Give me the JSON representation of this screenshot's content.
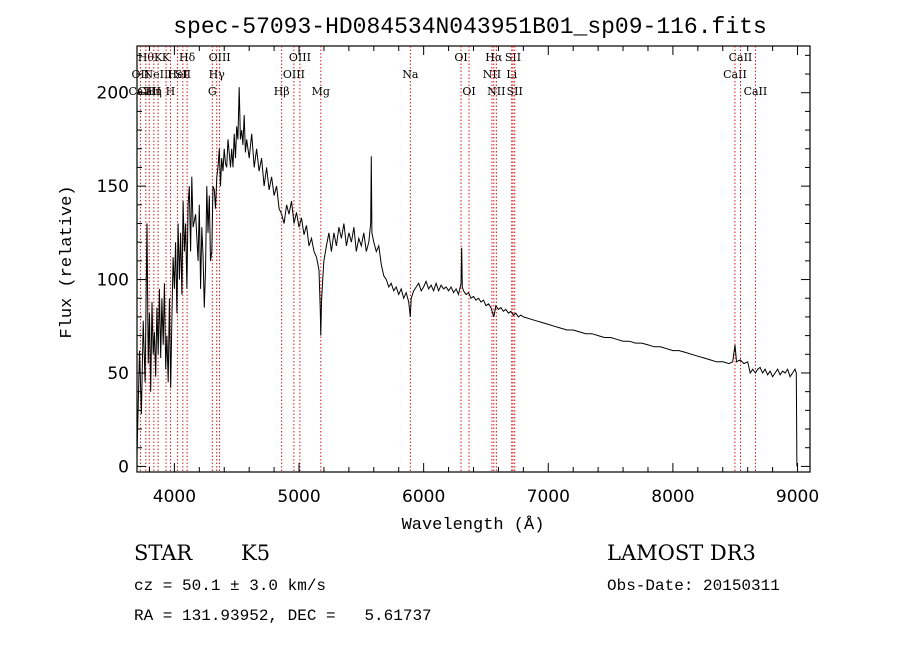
{
  "chart_data": {
    "type": "line",
    "title": "spec-57093-HD084534N043951B01_sp09-116.fits",
    "xlabel": "Wavelength (Å)",
    "ylabel": "Flux (relative)",
    "xlim": [
      3700,
      9100
    ],
    "ylim": [
      -3,
      225
    ],
    "x_ticks": [
      4000,
      5000,
      6000,
      7000,
      8000,
      9000
    ],
    "y_ticks": [
      0,
      50,
      100,
      150,
      200
    ],
    "grid": false,
    "series": [
      {
        "points": [
          [
            3700,
            5
          ],
          [
            3720,
            62
          ],
          [
            3735,
            28
          ],
          [
            3750,
            78
          ],
          [
            3765,
            45
          ],
          [
            3780,
            130
          ],
          [
            3790,
            55
          ],
          [
            3800,
            82
          ],
          [
            3810,
            40
          ],
          [
            3820,
            88
          ],
          [
            3830,
            60
          ],
          [
            3840,
            72
          ],
          [
            3850,
            48
          ],
          [
            3860,
            85
          ],
          [
            3870,
            60
          ],
          [
            3880,
            95
          ],
          [
            3890,
            58
          ],
          [
            3900,
            90
          ],
          [
            3910,
            65
          ],
          [
            3920,
            98
          ],
          [
            3930,
            52
          ],
          [
            3940,
            70
          ],
          [
            3950,
            45
          ],
          [
            3960,
            90
          ],
          [
            3970,
            42
          ],
          [
            3980,
            80
          ],
          [
            3990,
            112
          ],
          [
            4000,
            95
          ],
          [
            4010,
            120
          ],
          [
            4020,
            82
          ],
          [
            4030,
            130
          ],
          [
            4040,
            100
          ],
          [
            4050,
            125
          ],
          [
            4060,
            92
          ],
          [
            4070,
            142
          ],
          [
            4080,
            115
          ],
          [
            4090,
            130
          ],
          [
            4100,
            95
          ],
          [
            4110,
            140
          ],
          [
            4120,
            150
          ],
          [
            4130,
            115
          ],
          [
            4140,
            155
          ],
          [
            4150,
            128
          ],
          [
            4170,
            135
          ],
          [
            4190,
            110
          ],
          [
            4200,
            140
          ],
          [
            4210,
            95
          ],
          [
            4220,
            128
          ],
          [
            4230,
            112
          ],
          [
            4240,
            85
          ],
          [
            4250,
            105
          ],
          [
            4260,
            150
          ],
          [
            4270,
            125
          ],
          [
            4280,
            145
          ],
          [
            4290,
            110
          ],
          [
            4300,
            115
          ],
          [
            4310,
            150
          ],
          [
            4320,
            148
          ],
          [
            4330,
            138
          ],
          [
            4340,
            155
          ],
          [
            4350,
            160
          ],
          [
            4360,
            170
          ],
          [
            4370,
            150
          ],
          [
            4380,
            165
          ],
          [
            4390,
            158
          ],
          [
            4400,
            170
          ],
          [
            4410,
            162
          ],
          [
            4420,
            160
          ],
          [
            4430,
            175
          ],
          [
            4440,
            168
          ],
          [
            4450,
            160
          ],
          [
            4460,
            170
          ],
          [
            4470,
            160
          ],
          [
            4480,
            178
          ],
          [
            4490,
            165
          ],
          [
            4500,
            182
          ],
          [
            4510,
            175
          ],
          [
            4520,
            203
          ],
          [
            4530,
            175
          ],
          [
            4540,
            180
          ],
          [
            4550,
            172
          ],
          [
            4560,
            188
          ],
          [
            4570,
            168
          ],
          [
            4580,
            175
          ],
          [
            4600,
            165
          ],
          [
            4620,
            178
          ],
          [
            4640,
            160
          ],
          [
            4660,
            170
          ],
          [
            4680,
            158
          ],
          [
            4700,
            165
          ],
          [
            4720,
            150
          ],
          [
            4740,
            160
          ],
          [
            4760,
            148
          ],
          [
            4780,
            155
          ],
          [
            4800,
            145
          ],
          [
            4820,
            150
          ],
          [
            4840,
            138
          ],
          [
            4860,
            135
          ],
          [
            4880,
            130
          ],
          [
            4900,
            140
          ],
          [
            4920,
            135
          ],
          [
            4940,
            142
          ],
          [
            4960,
            130
          ],
          [
            4980,
            136
          ],
          [
            5000,
            128
          ],
          [
            5020,
            133
          ],
          [
            5040,
            124
          ],
          [
            5060,
            129
          ],
          [
            5080,
            118
          ],
          [
            5100,
            122
          ],
          [
            5120,
            115
          ],
          [
            5140,
            112
          ],
          [
            5160,
            105
          ],
          [
            5170,
            85
          ],
          [
            5175,
            70
          ],
          [
            5180,
            88
          ],
          [
            5190,
            100
          ],
          [
            5200,
            110
          ],
          [
            5220,
            118
          ],
          [
            5240,
            125
          ],
          [
            5260,
            115
          ],
          [
            5280,
            125
          ],
          [
            5300,
            118
          ],
          [
            5320,
            128
          ],
          [
            5340,
            122
          ],
          [
            5360,
            130
          ],
          [
            5380,
            118
          ],
          [
            5400,
            125
          ],
          [
            5420,
            120
          ],
          [
            5440,
            128
          ],
          [
            5460,
            115
          ],
          [
            5480,
            122
          ],
          [
            5500,
            118
          ],
          [
            5520,
            125
          ],
          [
            5540,
            115
          ],
          [
            5560,
            120
          ],
          [
            5575,
            130
          ],
          [
            5580,
            166
          ],
          [
            5585,
            125
          ],
          [
            5600,
            120
          ],
          [
            5620,
            115
          ],
          [
            5640,
            118
          ],
          [
            5660,
            108
          ],
          [
            5680,
            102
          ],
          [
            5700,
            100
          ],
          [
            5720,
            96
          ],
          [
            5740,
            98
          ],
          [
            5760,
            94
          ],
          [
            5780,
            96
          ],
          [
            5800,
            92
          ],
          [
            5820,
            95
          ],
          [
            5840,
            90
          ],
          [
            5860,
            93
          ],
          [
            5880,
            88
          ],
          [
            5893,
            80
          ],
          [
            5900,
            90
          ],
          [
            5920,
            94
          ],
          [
            5940,
            96
          ],
          [
            5960,
            98
          ],
          [
            5980,
            94
          ],
          [
            6000,
            96
          ],
          [
            6020,
            99
          ],
          [
            6040,
            95
          ],
          [
            6060,
            97
          ],
          [
            6080,
            94
          ],
          [
            6100,
            98
          ],
          [
            6120,
            94
          ],
          [
            6140,
            97
          ],
          [
            6160,
            95
          ],
          [
            6180,
            96
          ],
          [
            6200,
            94
          ],
          [
            6220,
            96
          ],
          [
            6240,
            93
          ],
          [
            6260,
            95
          ],
          [
            6280,
            92
          ],
          [
            6300,
            98
          ],
          [
            6305,
            117
          ],
          [
            6310,
            96
          ],
          [
            6320,
            94
          ],
          [
            6340,
            92
          ],
          [
            6360,
            93
          ],
          [
            6380,
            90
          ],
          [
            6400,
            91
          ],
          [
            6420,
            89
          ],
          [
            6440,
            90
          ],
          [
            6460,
            88
          ],
          [
            6480,
            89
          ],
          [
            6500,
            86
          ],
          [
            6520,
            87
          ],
          [
            6540,
            85
          ],
          [
            6563,
            80
          ],
          [
            6580,
            86
          ],
          [
            6600,
            84
          ],
          [
            6620,
            85
          ],
          [
            6640,
            83
          ],
          [
            6660,
            84
          ],
          [
            6680,
            82
          ],
          [
            6700,
            83
          ],
          [
            6720,
            81
          ],
          [
            6740,
            82
          ],
          [
            6760,
            80
          ],
          [
            6780,
            81
          ],
          [
            6800,
            80
          ],
          [
            6850,
            79
          ],
          [
            6900,
            78
          ],
          [
            6950,
            77
          ],
          [
            7000,
            76
          ],
          [
            7050,
            75
          ],
          [
            7100,
            74
          ],
          [
            7150,
            73
          ],
          [
            7200,
            73
          ],
          [
            7250,
            72
          ],
          [
            7300,
            71
          ],
          [
            7350,
            71
          ],
          [
            7400,
            70
          ],
          [
            7450,
            69
          ],
          [
            7500,
            69
          ],
          [
            7550,
            68
          ],
          [
            7600,
            67
          ],
          [
            7650,
            67
          ],
          [
            7700,
            66
          ],
          [
            7750,
            66
          ],
          [
            7800,
            65
          ],
          [
            7850,
            64
          ],
          [
            7900,
            64
          ],
          [
            7950,
            63
          ],
          [
            8000,
            62
          ],
          [
            8050,
            62
          ],
          [
            8100,
            61
          ],
          [
            8150,
            60
          ],
          [
            8200,
            59
          ],
          [
            8250,
            58
          ],
          [
            8300,
            57
          ],
          [
            8350,
            56
          ],
          [
            8400,
            56
          ],
          [
            8450,
            55
          ],
          [
            8480,
            56
          ],
          [
            8498,
            65
          ],
          [
            8510,
            56
          ],
          [
            8540,
            57
          ],
          [
            8570,
            55
          ],
          [
            8600,
            56
          ],
          [
            8620,
            50
          ],
          [
            8640,
            52
          ],
          [
            8662,
            50
          ],
          [
            8680,
            52
          ],
          [
            8700,
            53
          ],
          [
            8720,
            50
          ],
          [
            8740,
            52
          ],
          [
            8760,
            49
          ],
          [
            8780,
            51
          ],
          [
            8800,
            48
          ],
          [
            8820,
            50
          ],
          [
            8840,
            52
          ],
          [
            8860,
            49
          ],
          [
            8880,
            51
          ],
          [
            8900,
            50
          ],
          [
            8920,
            52
          ],
          [
            8940,
            48
          ],
          [
            8960,
            50
          ],
          [
            8980,
            52
          ],
          [
            8990,
            50
          ],
          [
            8995,
            0
          ]
        ]
      }
    ],
    "lines": [
      {
        "x": 3727,
        "labels": [
          "OII",
          "CaII"
        ],
        "rows": [
          1,
          2
        ]
      },
      {
        "x": 3771,
        "labels": [
          "Hθ"
        ],
        "rows": [
          0
        ]
      },
      {
        "x": 3798,
        "labels": [
          "CaII"
        ],
        "rows": [
          2
        ]
      },
      {
        "x": 3835,
        "labels": [
          "Hη"
        ],
        "rows": [
          2
        ]
      },
      {
        "x": 3869,
        "labels": [
          "NeIII",
          "K"
        ],
        "rows": [
          1,
          0
        ]
      },
      {
        "x": 3933,
        "labels": [
          "K"
        ],
        "rows": [
          0
        ]
      },
      {
        "x": 3968,
        "labels": [
          "H"
        ],
        "rows": [
          2
        ]
      },
      {
        "x": 4026,
        "labels": [
          "HeI"
        ],
        "rows": [
          1
        ]
      },
      {
        "x": 4068,
        "labels": [
          "SII"
        ],
        "rows": [
          1
        ]
      },
      {
        "x": 4102,
        "labels": [
          "Hδ"
        ],
        "rows": [
          0
        ]
      },
      {
        "x": 4304,
        "labels": [
          "G"
        ],
        "rows": [
          2
        ]
      },
      {
        "x": 4340,
        "labels": [
          "Hγ"
        ],
        "rows": [
          1
        ]
      },
      {
        "x": 4363,
        "labels": [
          "OIII"
        ],
        "rows": [
          0
        ]
      },
      {
        "x": 4861,
        "labels": [
          "Hβ"
        ],
        "rows": [
          2
        ]
      },
      {
        "x": 4959,
        "labels": [
          "OIII"
        ],
        "rows": [
          1
        ]
      },
      {
        "x": 5007,
        "labels": [
          "OIII"
        ],
        "rows": [
          0
        ]
      },
      {
        "x": 5175,
        "labels": [
          "Mg"
        ],
        "rows": [
          2
        ]
      },
      {
        "x": 5893,
        "labels": [
          "Na"
        ],
        "rows": [
          1
        ]
      },
      {
        "x": 6300,
        "labels": [
          "OI"
        ],
        "rows": [
          0
        ]
      },
      {
        "x": 6364,
        "labels": [
          "OI"
        ],
        "rows": [
          2
        ]
      },
      {
        "x": 6548,
        "labels": [
          "NII"
        ],
        "rows": [
          1
        ]
      },
      {
        "x": 6563,
        "labels": [
          "Hα"
        ],
        "rows": [
          0
        ]
      },
      {
        "x": 6583,
        "labels": [
          "NII"
        ],
        "rows": [
          2
        ]
      },
      {
        "x": 6707,
        "labels": [
          "Li"
        ],
        "rows": [
          1
        ]
      },
      {
        "x": 6717,
        "labels": [
          "SII"
        ],
        "rows": [
          0
        ]
      },
      {
        "x": 6731,
        "labels": [
          "SII"
        ],
        "rows": [
          2
        ]
      },
      {
        "x": 8498,
        "labels": [
          "CaII"
        ],
        "rows": [
          1
        ]
      },
      {
        "x": 8542,
        "labels": [
          "CaII"
        ],
        "rows": [
          0
        ]
      },
      {
        "x": 8662,
        "labels": [
          "CaII"
        ],
        "rows": [
          2
        ]
      }
    ],
    "line_color": "#cc0000",
    "series_color": "#000000"
  },
  "info": {
    "class_label": "STAR",
    "subclass": "K5",
    "survey": "LAMOST DR3",
    "cz_text": "cz = 50.1 ± 3.0 km/s",
    "obs_date": "Obs-Date: 20150311",
    "radec_text": "RA = 131.93952, DEC =   5.61737"
  }
}
